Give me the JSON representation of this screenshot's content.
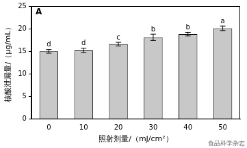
{
  "chart_data": {
    "type": "bar",
    "title": "A",
    "x_label": "照射剂量/（mJ/cm²）",
    "y_label": "核酸泄漏量/（μg/mL）",
    "categories": [
      "0",
      "10",
      "20",
      "30",
      "40",
      "50"
    ],
    "values": [
      15.0,
      15.2,
      16.6,
      18.1,
      18.8,
      20.1
    ],
    "errors": [
      0.4,
      0.5,
      0.4,
      0.7,
      0.4,
      0.5
    ],
    "letters": [
      "d",
      "d",
      "c",
      "b",
      "b",
      "a"
    ],
    "color": "#c8c8c8",
    "ylim": [
      0,
      25
    ],
    "yticks": [
      0,
      5,
      10,
      15,
      20,
      25
    ],
    "grid": false,
    "watermark": "食品科学杂志"
  }
}
